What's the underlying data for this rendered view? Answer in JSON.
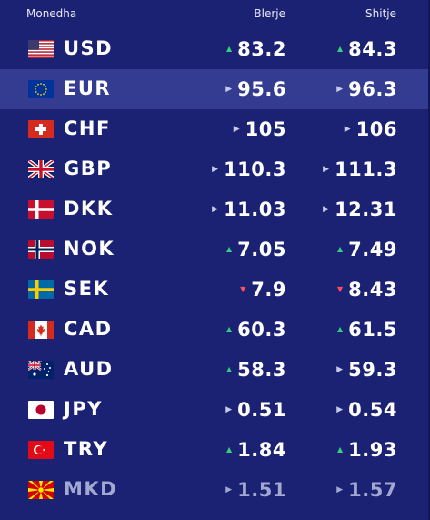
{
  "header": {
    "currency": "Monedha",
    "buy": "Blerje",
    "sell": "Shitje"
  },
  "rows": [
    {
      "code": "USD",
      "flag": "us-flag",
      "buy": "83.2",
      "buy_trend": "up",
      "sell": "84.3",
      "sell_trend": "up"
    },
    {
      "code": "EUR",
      "flag": "eu-flag",
      "buy": "95.6",
      "buy_trend": "flat",
      "sell": "96.3",
      "sell_trend": "flat",
      "highlight": true
    },
    {
      "code": "CHF",
      "flag": "ch-flag",
      "buy": "105",
      "buy_trend": "flat",
      "sell": "106",
      "sell_trend": "flat"
    },
    {
      "code": "GBP",
      "flag": "gb-flag",
      "buy": "110.3",
      "buy_trend": "flat",
      "sell": "111.3",
      "sell_trend": "flat"
    },
    {
      "code": "DKK",
      "flag": "dk-flag",
      "buy": "11.03",
      "buy_trend": "flat",
      "sell": "12.31",
      "sell_trend": "flat"
    },
    {
      "code": "NOK",
      "flag": "no-flag",
      "buy": "7.05",
      "buy_trend": "up",
      "sell": "7.49",
      "sell_trend": "up"
    },
    {
      "code": "SEK",
      "flag": "se-flag",
      "buy": "7.9",
      "buy_trend": "down",
      "sell": "8.43",
      "sell_trend": "down"
    },
    {
      "code": "CAD",
      "flag": "ca-flag",
      "buy": "60.3",
      "buy_trend": "up",
      "sell": "61.5",
      "sell_trend": "up"
    },
    {
      "code": "AUD",
      "flag": "au-flag",
      "buy": "58.3",
      "buy_trend": "up",
      "sell": "59.3",
      "sell_trend": "flat"
    },
    {
      "code": "JPY",
      "flag": "jp-flag",
      "buy": "0.51",
      "buy_trend": "flat",
      "sell": "0.54",
      "sell_trend": "flat"
    },
    {
      "code": "TRY",
      "flag": "tr-flag",
      "buy": "1.84",
      "buy_trend": "up",
      "sell": "1.93",
      "sell_trend": "up"
    },
    {
      "code": "MKD",
      "flag": "mk-flag",
      "buy": "1.51",
      "buy_trend": "flat",
      "sell": "1.57",
      "sell_trend": "flat",
      "dim": true
    }
  ],
  "colors": {
    "background": "#1b2273",
    "highlight": "#343c91",
    "up": "#35d07f",
    "down": "#ff4d5e"
  }
}
